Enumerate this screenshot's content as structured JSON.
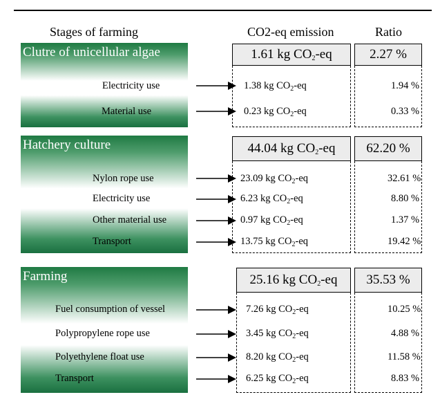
{
  "headers": {
    "stages": "Stages of farming",
    "emission": "CO2-eq emission",
    "ratio": "Ratio"
  },
  "sections": [
    {
      "title": "Clutre of unicellular algae",
      "total": {
        "amount": "1.61 kg CO",
        "sub": "2",
        "unit": "-eq",
        "ratio": "2.27 %"
      },
      "items": [
        {
          "label": "Electricity use",
          "amount": "1.38 kg CO",
          "sub": "2",
          "unit": "-eq",
          "ratio": "1.94 %"
        },
        {
          "label": "Material use",
          "amount": "0.23 kg CO",
          "sub": "2",
          "unit": "-eq",
          "ratio": "0.33 %"
        }
      ]
    },
    {
      "title": "Hatchery culture",
      "total": {
        "amount": "44.04 kg CO",
        "sub": "2",
        "unit": "-eq",
        "ratio": "62.20 %"
      },
      "items": [
        {
          "label": "Nylon rope use",
          "amount": "23.09 kg CO",
          "sub": "2",
          "unit": "-eq",
          "ratio": "32.61 %"
        },
        {
          "label": "Electricity use",
          "amount": "6.23  kg CO",
          "sub": "2",
          "unit": "-eq",
          "ratio": "8.80 %"
        },
        {
          "label": "Other material use",
          "amount": "0.97  kg CO",
          "sub": "2",
          "unit": "-eq",
          "ratio": "1.37 %"
        },
        {
          "label": "Transport",
          "amount": "13.75 kg CO",
          "sub": "2",
          "unit": "-eq",
          "ratio": "19.42 %"
        }
      ]
    },
    {
      "title": "Farming",
      "total": {
        "amount": "25.16 kg CO",
        "sub": "2",
        "unit": "-eq",
        "ratio": "35.53 %"
      },
      "items": [
        {
          "label": "Fuel consumption of vessel",
          "amount": "7.26  kg CO",
          "sub": "2",
          "unit": "-eq",
          "ratio": "10.25 %"
        },
        {
          "label": "Polypropylene rope use",
          "amount": "3.45  kg CO",
          "sub": "2",
          "unit": "-eq",
          "ratio": "4.88 %"
        },
        {
          "label": "Polyethylene float use",
          "amount": "8.20  kg CO",
          "sub": "2",
          "unit": "-eq",
          "ratio": "11.58 %"
        },
        {
          "label": "Transport",
          "amount": "6.25  kg CO",
          "sub": "2",
          "unit": "-eq",
          "ratio": "8.83 %"
        }
      ]
    }
  ]
}
